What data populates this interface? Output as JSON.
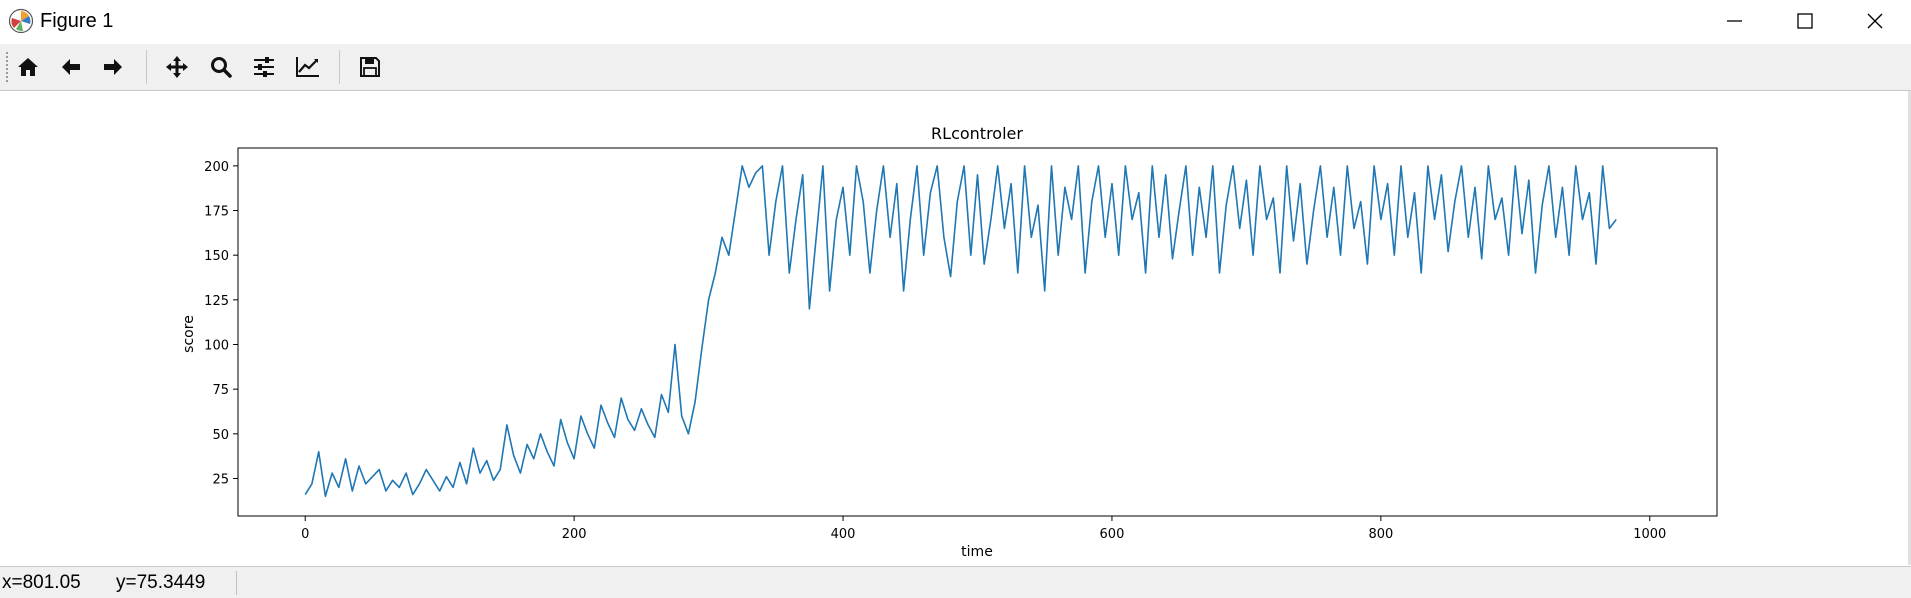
{
  "window": {
    "title": "Figure 1",
    "icons": {
      "app": "matplotlib-logo-icon",
      "minimize": "minimize-icon",
      "maximize": "maximize-icon",
      "close": "close-icon"
    }
  },
  "toolbar": {
    "buttons": [
      {
        "name": "home",
        "icon": "home-icon"
      },
      {
        "name": "back",
        "icon": "arrow-left-icon"
      },
      {
        "name": "forward",
        "icon": "arrow-right-icon"
      },
      {
        "name": "pan",
        "icon": "move-arrows-icon"
      },
      {
        "name": "zoom",
        "icon": "magnifier-icon"
      },
      {
        "name": "subplots",
        "icon": "sliders-icon"
      },
      {
        "name": "edit-axes",
        "icon": "line-chart-icon"
      },
      {
        "name": "save",
        "icon": "floppy-disk-icon"
      }
    ]
  },
  "status": {
    "x": "x=801.05",
    "y": "y=75.3449"
  },
  "chart_data": {
    "type": "line",
    "title": "RLcontroler",
    "xlabel": "time",
    "ylabel": "score",
    "xlim": [
      -50,
      1050
    ],
    "ylim": [
      4,
      210
    ],
    "xticks": [
      0,
      200,
      400,
      600,
      800,
      1000
    ],
    "yticks": [
      25,
      50,
      75,
      100,
      125,
      150,
      175,
      200
    ],
    "grid": false,
    "line_color": "#1f77b4",
    "series": [
      {
        "x_start": 0,
        "x_step": 5,
        "values": [
          16,
          22,
          40,
          15,
          28,
          20,
          36,
          18,
          32,
          22,
          26,
          30,
          18,
          24,
          20,
          28,
          16,
          22,
          30,
          24,
          18,
          26,
          20,
          34,
          22,
          42,
          28,
          35,
          24,
          30,
          55,
          38,
          28,
          44,
          36,
          50,
          40,
          32,
          58,
          45,
          36,
          60,
          50,
          42,
          66,
          56,
          48,
          70,
          58,
          52,
          64,
          55,
          48,
          72,
          62,
          100,
          60,
          50,
          68,
          98,
          125,
          140,
          160,
          150,
          175,
          200,
          188,
          196,
          200,
          150,
          180,
          200,
          140,
          170,
          195,
          120,
          160,
          200,
          130,
          170,
          188,
          150,
          200,
          180,
          140,
          175,
          200,
          160,
          190,
          130,
          170,
          200,
          150,
          185,
          200,
          160,
          138,
          180,
          200,
          150,
          195,
          145,
          170,
          200,
          165,
          190,
          140,
          200,
          160,
          178,
          130,
          200,
          150,
          188,
          170,
          200,
          140,
          180,
          200,
          160,
          190,
          150,
          200,
          170,
          185,
          140,
          200,
          160,
          195,
          148,
          175,
          200,
          150,
          188,
          160,
          200,
          140,
          178,
          200,
          165,
          192,
          150,
          200,
          170,
          182,
          140,
          200,
          158,
          190,
          145,
          175,
          200,
          160,
          188,
          150,
          200,
          165,
          180,
          145,
          200,
          170,
          190,
          150,
          200,
          160,
          185,
          140,
          200,
          170,
          195,
          152,
          180,
          200,
          160,
          188,
          148,
          200,
          170,
          182,
          150,
          200,
          162,
          192,
          140,
          178,
          200,
          160,
          188,
          150,
          200,
          170,
          185,
          145,
          200,
          165,
          170
        ]
      }
    ]
  }
}
